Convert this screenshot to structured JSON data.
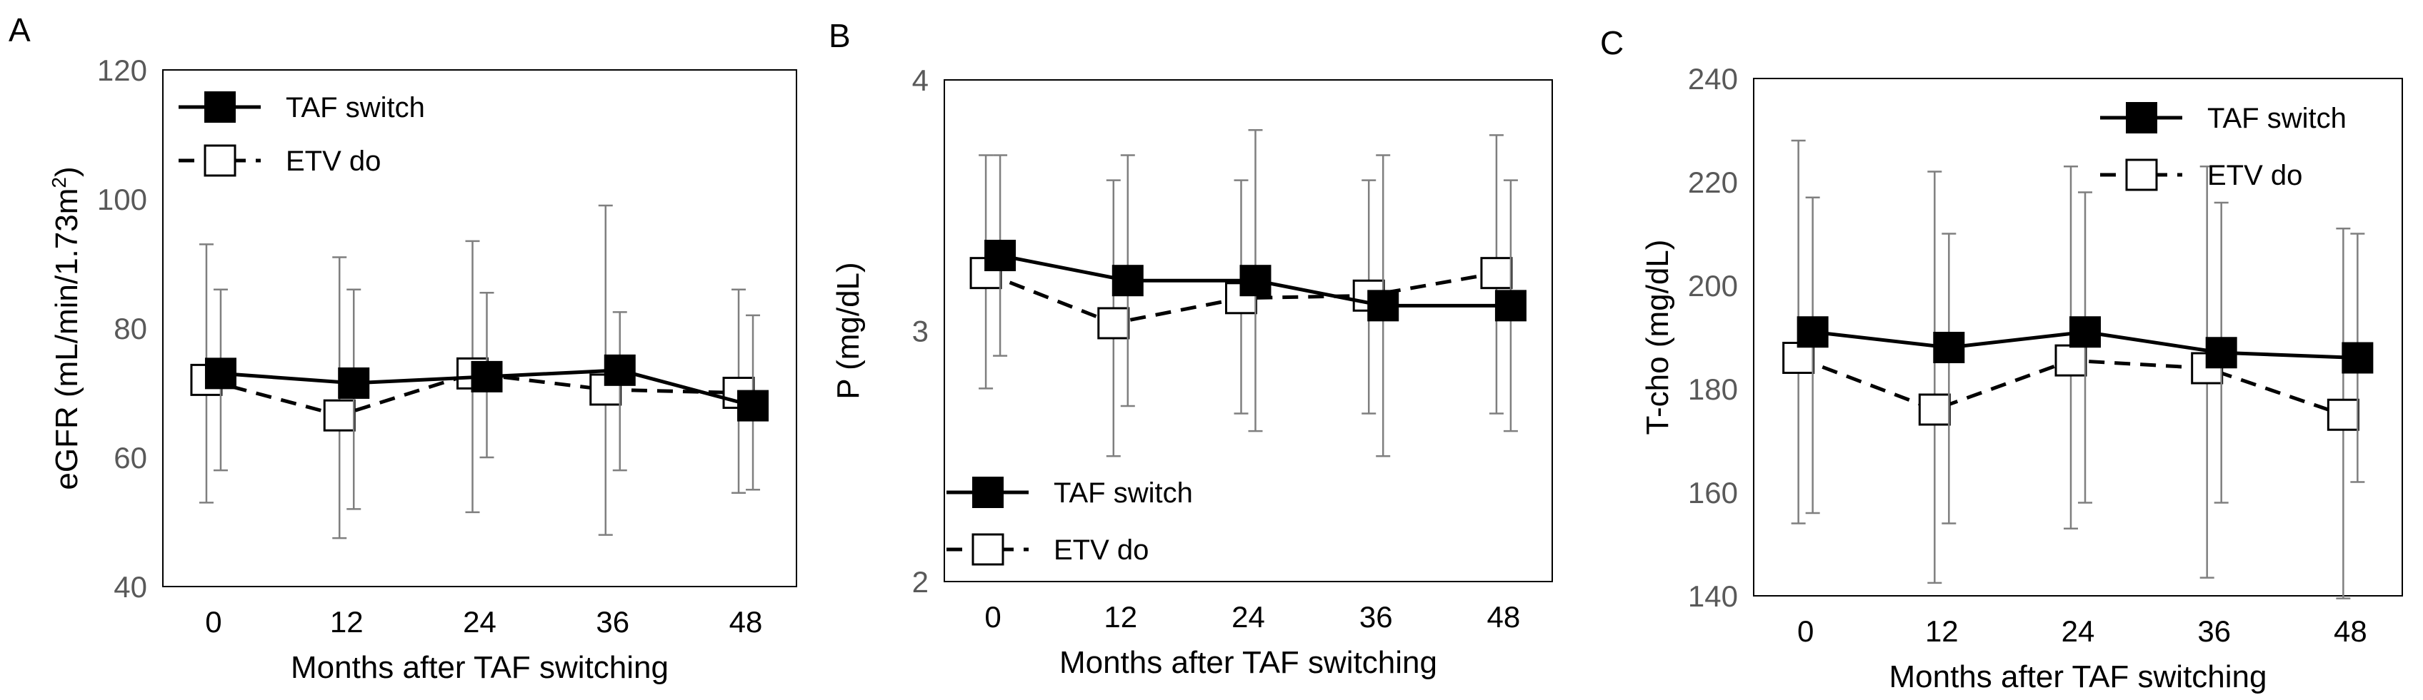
{
  "chart_data": [
    {
      "panel": "A",
      "type": "line",
      "x": [
        0,
        12,
        24,
        36,
        48
      ],
      "xlabel": "Months after TAF switching",
      "ylabel": "eGFR (mL/min/1.73m",
      "ylabel_sup": "2",
      "ylabel_end": ")",
      "ylim": [
        40,
        120
      ],
      "yticks": [
        40,
        60,
        80,
        100,
        120
      ],
      "legend_position": "top-left",
      "series": [
        {
          "name": "TAF switch",
          "style": "solid-filled",
          "values": [
            73,
            71.5,
            72.5,
            73.5,
            68
          ],
          "err_low": [
            58,
            52,
            60,
            58,
            55
          ],
          "err_high": [
            86,
            86,
            85.5,
            82.5,
            82
          ]
        },
        {
          "name": "ETV do",
          "style": "dashed-open",
          "values": [
            72,
            66.5,
            73,
            70.5,
            70
          ],
          "err_low": [
            53,
            47.5,
            51.5,
            48,
            54.5
          ],
          "err_high": [
            93,
            91,
            93.5,
            99,
            86
          ]
        }
      ]
    },
    {
      "panel": "B",
      "type": "line",
      "x": [
        0,
        12,
        24,
        36,
        48
      ],
      "xlabel": "Months after TAF switching",
      "ylabel": "P (mg/dL)",
      "ylim": [
        2,
        4
      ],
      "yticks": [
        2,
        3,
        4
      ],
      "legend_position": "bottom-left",
      "series": [
        {
          "name": "TAF switch",
          "style": "solid-filled",
          "values": [
            3.3,
            3.2,
            3.2,
            3.1,
            3.1
          ],
          "err_low": [
            2.9,
            2.7,
            2.6,
            2.5,
            2.6
          ],
          "err_high": [
            3.7,
            3.7,
            3.8,
            3.7,
            3.6
          ]
        },
        {
          "name": "ETV do",
          "style": "dashed-open",
          "values": [
            3.23,
            3.03,
            3.13,
            3.14,
            3.23
          ],
          "err_low": [
            2.77,
            2.5,
            2.67,
            2.67,
            2.67
          ],
          "err_high": [
            3.7,
            3.6,
            3.6,
            3.6,
            3.78
          ]
        }
      ]
    },
    {
      "panel": "C",
      "type": "line",
      "x": [
        0,
        12,
        24,
        36,
        48
      ],
      "xlabel": "Months after TAF switching",
      "ylabel": "T-cho (mg/dL)",
      "ylim": [
        140,
        240
      ],
      "yticks": [
        140,
        160,
        180,
        200,
        220,
        240
      ],
      "legend_position": "top-right",
      "series": [
        {
          "name": "TAF switch",
          "style": "solid-filled",
          "values": [
            191,
            188,
            191,
            187,
            186
          ],
          "err_low": [
            156,
            154,
            158,
            158,
            162
          ],
          "err_high": [
            217,
            210,
            218,
            216,
            210
          ]
        },
        {
          "name": "ETV do",
          "style": "dashed-open",
          "values": [
            186,
            176,
            185.5,
            184,
            175
          ],
          "err_low": [
            154,
            142.5,
            153,
            143.5,
            139.5
          ],
          "err_high": [
            228,
            222,
            223,
            223,
            211
          ]
        }
      ]
    }
  ]
}
